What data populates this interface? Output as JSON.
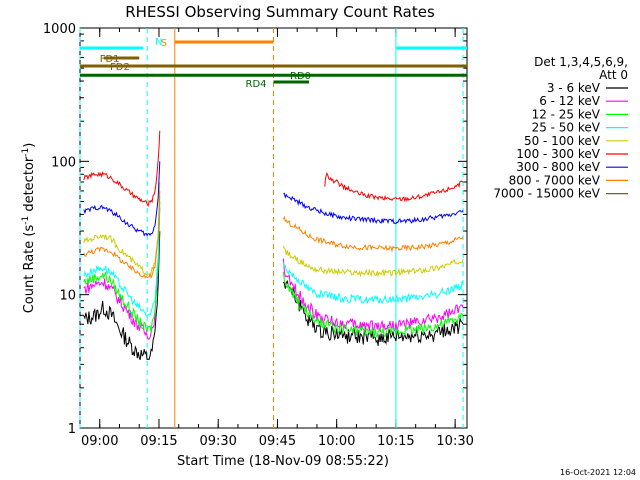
{
  "chart_data": {
    "type": "line",
    "title": "RHESSI Observing Summary Count Rates",
    "xlabel": "Start Time (18-Nov-09 08:55:22)",
    "ylabel": "Count Rate (s",
    "ylabel_sup1": "-1",
    "ylabel_mid": " detector",
    "ylabel_sup2": "-1",
    "ylabel_end": ")",
    "yscale": "log",
    "ylim": [
      1,
      1000
    ],
    "xlim_minutes": [
      0,
      98
    ],
    "x_ticks": [
      {
        "label": "09:00",
        "min": 5
      },
      {
        "label": "09:15",
        "min": 20
      },
      {
        "label": "09:30",
        "min": 35
      },
      {
        "label": "09:45",
        "min": 50
      },
      {
        "label": "10:00",
        "min": 65
      },
      {
        "label": "10:15",
        "min": 80
      },
      {
        "label": "10:30",
        "min": 95
      }
    ],
    "y_ticks": [
      {
        "label": "1",
        "value": 1
      },
      {
        "label": "10",
        "value": 10
      },
      {
        "label": "100",
        "value": 100
      },
      {
        "label": "1000",
        "value": 1000
      }
    ],
    "legend_header": [
      "Det 1,3,4,5,6,9,",
      "Att 0"
    ],
    "timestamp": "16-Oct-2021 12:04",
    "series": [
      {
        "name": "3 - 6 keV",
        "color": "#000000",
        "seg1": [
          [
            1,
            6.5
          ],
          [
            4,
            7
          ],
          [
            6,
            8
          ],
          [
            8,
            7
          ],
          [
            10,
            5.5
          ],
          [
            12,
            4.5
          ],
          [
            14,
            3.8
          ],
          [
            16,
            3.5
          ],
          [
            17,
            3.4
          ],
          [
            18,
            3.5
          ],
          [
            19,
            5
          ],
          [
            19.8,
            12
          ],
          [
            20.2,
            30
          ]
        ],
        "seg2": [
          [
            51.5,
            14
          ],
          [
            52,
            12
          ],
          [
            54,
            10
          ],
          [
            56,
            8
          ],
          [
            58,
            6.5
          ],
          [
            60,
            5.6
          ],
          [
            63,
            5.2
          ],
          [
            66,
            5
          ],
          [
            70,
            4.8
          ],
          [
            75,
            4.7
          ],
          [
            80,
            4.8
          ],
          [
            85,
            4.9
          ],
          [
            90,
            5.1
          ],
          [
            94,
            5.5
          ],
          [
            97,
            6
          ]
        ]
      },
      {
        "name": "6 - 12 keV",
        "color": "#ff00ff",
        "seg1": [
          [
            1,
            11
          ],
          [
            4,
            12
          ],
          [
            6,
            12.5
          ],
          [
            8,
            11
          ],
          [
            10,
            9
          ],
          [
            12,
            7.5
          ],
          [
            14,
            6.2
          ],
          [
            16,
            5.4
          ],
          [
            17,
            5
          ],
          [
            18,
            5.2
          ],
          [
            19,
            7
          ],
          [
            19.8,
            16
          ],
          [
            20.2,
            45
          ]
        ],
        "seg2": [
          [
            51.5,
            17
          ],
          [
            52,
            14
          ],
          [
            54,
            11.5
          ],
          [
            56,
            9.5
          ],
          [
            58,
            8
          ],
          [
            60,
            7
          ],
          [
            63,
            6.4
          ],
          [
            66,
            6.1
          ],
          [
            70,
            5.9
          ],
          [
            75,
            5.8
          ],
          [
            80,
            5.9
          ],
          [
            85,
            6.1
          ],
          [
            90,
            6.6
          ],
          [
            94,
            7.2
          ],
          [
            97,
            8
          ]
        ]
      },
      {
        "name": "12 - 25 keV",
        "color": "#00ff00",
        "seg1": [
          [
            1,
            12.5
          ],
          [
            4,
            13.5
          ],
          [
            6,
            14
          ],
          [
            8,
            12.5
          ],
          [
            10,
            10
          ],
          [
            12,
            8.3
          ],
          [
            14,
            6.8
          ],
          [
            16,
            5.8
          ],
          [
            17,
            5.4
          ],
          [
            18,
            5.6
          ],
          [
            19,
            7.5
          ],
          [
            19.8,
            17
          ],
          [
            20.2,
            50
          ]
        ],
        "seg2": [
          [
            51.5,
            14
          ],
          [
            52,
            12
          ],
          [
            54,
            10
          ],
          [
            56,
            8.2
          ],
          [
            58,
            7
          ],
          [
            60,
            6.2
          ],
          [
            63,
            5.8
          ],
          [
            66,
            5.5
          ],
          [
            70,
            5.3
          ],
          [
            75,
            5.2
          ],
          [
            80,
            5.3
          ],
          [
            85,
            5.5
          ],
          [
            90,
            5.8
          ],
          [
            94,
            6.3
          ],
          [
            97,
            6.8
          ]
        ]
      },
      {
        "name": "25 - 50 keV",
        "color": "#00ffff",
        "seg1": [
          [
            1,
            14
          ],
          [
            4,
            15.5
          ],
          [
            6,
            16
          ],
          [
            8,
            14.5
          ],
          [
            10,
            12
          ],
          [
            12,
            10.2
          ],
          [
            14,
            8.5
          ],
          [
            16,
            7.5
          ],
          [
            17,
            7
          ],
          [
            18,
            7.2
          ],
          [
            19,
            9
          ],
          [
            19.8,
            20
          ],
          [
            20.2,
            55
          ]
        ],
        "seg2": [
          [
            51.5,
            17
          ],
          [
            52,
            16
          ],
          [
            54,
            14
          ],
          [
            56,
            12.5
          ],
          [
            58,
            11
          ],
          [
            60,
            10.2
          ],
          [
            63,
            9.7
          ],
          [
            66,
            9.4
          ],
          [
            70,
            9.2
          ],
          [
            75,
            9.1
          ],
          [
            80,
            9.2
          ],
          [
            85,
            9.5
          ],
          [
            90,
            10
          ],
          [
            94,
            11
          ],
          [
            97,
            12
          ]
        ]
      },
      {
        "name": "50 - 100 keV",
        "color": "#cccc00",
        "seg1": [
          [
            1,
            25
          ],
          [
            4,
            27
          ],
          [
            6,
            28
          ],
          [
            8,
            26
          ],
          [
            10,
            22
          ],
          [
            12,
            19.5
          ],
          [
            14,
            17
          ],
          [
            16,
            15.2
          ],
          [
            17,
            14.5
          ],
          [
            18,
            14.8
          ],
          [
            19,
            17
          ],
          [
            19.8,
            28
          ],
          [
            20.2,
            70
          ]
        ],
        "seg2": [
          [
            51.5,
            23
          ],
          [
            52,
            21
          ],
          [
            54,
            19
          ],
          [
            56,
            17.5
          ],
          [
            58,
            16.2
          ],
          [
            60,
            15.4
          ],
          [
            63,
            15
          ],
          [
            66,
            14.8
          ],
          [
            70,
            14.6
          ],
          [
            75,
            14.5
          ],
          [
            80,
            14.6
          ],
          [
            85,
            15
          ],
          [
            90,
            15.8
          ],
          [
            94,
            17
          ],
          [
            97,
            18.5
          ]
        ]
      },
      {
        "name": "100 - 300 keV",
        "color": "#ff0000",
        "seg1": [
          [
            1,
            75
          ],
          [
            4,
            80
          ],
          [
            6,
            80
          ],
          [
            8,
            75
          ],
          [
            10,
            67
          ],
          [
            12,
            60
          ],
          [
            14,
            54
          ],
          [
            16,
            50
          ],
          [
            17,
            48
          ],
          [
            18,
            49
          ],
          [
            19,
            60
          ],
          [
            19.8,
            100
          ],
          [
            20.2,
            170
          ]
        ],
        "seg2": [
          [
            62,
            65
          ],
          [
            62.3,
            80
          ],
          [
            63,
            75
          ],
          [
            65,
            70
          ],
          [
            67,
            64
          ],
          [
            70,
            58
          ],
          [
            73,
            55
          ],
          [
            76,
            53
          ],
          [
            80,
            52
          ],
          [
            84,
            53
          ],
          [
            88,
            56
          ],
          [
            92,
            60
          ],
          [
            95,
            65
          ],
          [
            97,
            70
          ]
        ]
      },
      {
        "name": "300 - 800 keV",
        "color": "#0000ff",
        "seg1": [
          [
            1,
            42
          ],
          [
            4,
            45
          ],
          [
            6,
            45
          ],
          [
            8,
            42
          ],
          [
            10,
            38
          ],
          [
            12,
            34
          ],
          [
            14,
            31
          ],
          [
            16,
            29
          ],
          [
            17,
            28
          ],
          [
            18,
            28.5
          ],
          [
            19,
            33
          ],
          [
            19.8,
            55
          ],
          [
            20.2,
            100
          ]
        ],
        "seg2": [
          [
            51.5,
            58
          ],
          [
            52,
            55
          ],
          [
            54,
            52
          ],
          [
            56,
            48
          ],
          [
            58,
            45
          ],
          [
            60,
            43
          ],
          [
            63,
            40
          ],
          [
            66,
            38
          ],
          [
            70,
            37
          ],
          [
            75,
            36
          ],
          [
            80,
            35.5
          ],
          [
            85,
            36
          ],
          [
            90,
            38
          ],
          [
            94,
            40
          ],
          [
            97,
            43
          ]
        ]
      },
      {
        "name": "800 - 7000 keV",
        "color": "#ff8000",
        "seg1": [
          [
            1,
            20
          ],
          [
            4,
            21.5
          ],
          [
            6,
            22
          ],
          [
            8,
            21
          ],
          [
            10,
            18.5
          ],
          [
            12,
            16.5
          ],
          [
            14,
            15
          ],
          [
            16,
            14
          ],
          [
            17,
            13.5
          ],
          [
            18,
            13.8
          ],
          [
            19,
            16
          ],
          [
            19.8,
            27
          ],
          [
            20.2,
            60
          ]
        ],
        "seg2": [
          [
            51.5,
            38
          ],
          [
            52,
            36
          ],
          [
            54,
            33
          ],
          [
            56,
            30
          ],
          [
            58,
            27.5
          ],
          [
            60,
            26
          ],
          [
            63,
            24.5
          ],
          [
            66,
            23.5
          ],
          [
            70,
            22.8
          ],
          [
            75,
            22.3
          ],
          [
            80,
            22.2
          ],
          [
            85,
            22.6
          ],
          [
            90,
            23.5
          ],
          [
            94,
            25
          ],
          [
            97,
            27
          ]
        ]
      },
      {
        "name": "7000 - 15000 keV",
        "color": "#806000",
        "seg1": [],
        "seg2": []
      }
    ],
    "modes": [
      {
        "label": "N",
        "color": "#00ffff",
        "y_frac": 0.05,
        "lines": [
          [
            0,
            16
          ],
          [
            80,
            98
          ]
        ]
      },
      {
        "label": "S",
        "color": "#ff8000",
        "y_frac": 0.035,
        "lines": [
          [
            24,
            49
          ]
        ]
      },
      {
        "label": "FD1",
        "color": "#806000",
        "y_frac": 0.075,
        "lines": [
          [
            6,
            15
          ]
        ]
      },
      {
        "label": "FD2",
        "color": "#806000",
        "y_frac": 0.095,
        "lines": [
          [
            0,
            98
          ]
        ]
      },
      {
        "label": "RD0",
        "color": "#006400",
        "y_frac": 0.118,
        "lines": [
          [
            0,
            98
          ]
        ]
      },
      {
        "label": "RD4",
        "color": "#006400",
        "y_frac": 0.135,
        "lines": [
          [
            49,
            58
          ]
        ]
      }
    ],
    "vlines": [
      {
        "min": 0,
        "color": "#00ffff",
        "dash": true
      },
      {
        "min": 17,
        "color": "#00ffff",
        "dash": true
      },
      {
        "min": 24,
        "color": "#ff8000",
        "dash": false
      },
      {
        "min": 49,
        "color": "#ff8000",
        "dash": true
      },
      {
        "min": 80,
        "color": "#00ffff",
        "dash": false
      },
      {
        "min": 97,
        "color": "#00ffff",
        "dash": true
      }
    ]
  }
}
